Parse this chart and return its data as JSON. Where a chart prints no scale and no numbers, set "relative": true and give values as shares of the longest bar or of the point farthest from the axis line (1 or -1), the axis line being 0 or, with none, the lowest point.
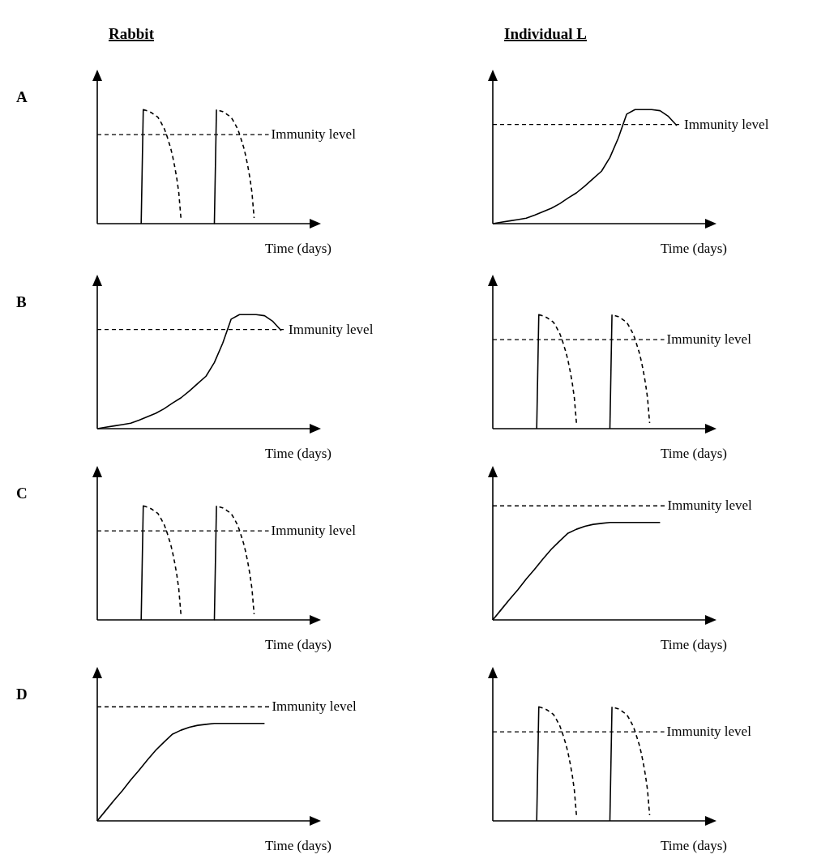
{
  "chart_data": [
    {
      "type": "line",
      "title": "Rabbit",
      "annotations": [
        "A"
      ],
      "xlabel": "Time (days)",
      "relative": true,
      "categories": [
        null,
        null,
        null,
        null,
        null,
        null,
        null,
        null,
        null,
        null,
        null,
        null,
        null,
        null,
        null,
        null,
        null,
        null,
        null,
        null,
        null,
        null,
        null,
        null,
        null,
        null,
        null,
        null,
        null,
        null,
        null,
        null,
        null,
        null,
        null,
        null,
        null,
        null,
        null,
        null,
        null,
        null,
        null,
        null,
        null,
        null,
        null,
        null,
        null,
        null,
        null,
        null,
        null,
        null,
        null,
        null,
        null,
        null,
        null,
        null,
        null,
        null,
        null,
        null,
        null,
        null,
        null,
        null,
        null,
        null,
        null,
        null,
        null,
        null,
        null,
        null,
        null,
        null,
        null,
        null,
        null,
        null,
        null,
        null,
        null,
        null,
        null,
        null,
        null,
        null,
        null,
        null,
        null,
        null,
        null,
        null,
        null,
        null,
        null,
        null,
        null
      ],
      "ref_lines": [
        {
          "axis": "y",
          "value": 0.78,
          "label": "Immunity level",
          "color": "#000000",
          "line_style": "dashed"
        }
      ],
      "series": [
        {
          "color": "#000000",
          "line_style": "dashed",
          "values": [
            0,
            0,
            0,
            0,
            0,
            0,
            0,
            0,
            0,
            0,
            0,
            0,
            0,
            0,
            0,
            0,
            0,
            0,
            0,
            0,
            0,
            0,
            1,
            0.994,
            0.988,
            0.982,
            0.972,
            0.959,
            0.946,
            0.933,
            0.903,
            0.869,
            0.835,
            0.787,
            0.728,
            0.67,
            0.594,
            0.504,
            0.4,
            0.27,
            0.05,
            0,
            0,
            0,
            0,
            0,
            0,
            0,
            0,
            0,
            0,
            0,
            0,
            0,
            0,
            0,
            0,
            1,
            0.994,
            0.988,
            0.982,
            0.972,
            0.959,
            0.946,
            0.933,
            0.903,
            0.869,
            0.835,
            0.787,
            0.728,
            0.67,
            0.594,
            0.504,
            0.4,
            0.27,
            0.05,
            null,
            null,
            null,
            null,
            null,
            null,
            null,
            null,
            null,
            null,
            null,
            null,
            null,
            null,
            null,
            null,
            null,
            null,
            null,
            null,
            null,
            null,
            null,
            null,
            null
          ]
        }
      ]
    },
    {
      "type": "line",
      "title": "Individual L",
      "xlabel": "Time (days)",
      "relative": true,
      "categories": [
        null,
        null,
        null,
        null,
        null,
        null,
        null,
        null,
        null,
        null,
        null,
        null,
        null,
        null,
        null,
        null,
        null,
        null,
        null,
        null,
        null,
        null,
        null,
        null,
        null,
        null
      ],
      "ref_lines": [
        {
          "axis": "y",
          "value": 0.87,
          "label": "Immunity level",
          "color": "#000000",
          "line_style": "dashed"
        }
      ],
      "series": [
        {
          "color": "#000000",
          "line_style": "solid",
          "values": [
            0,
            0.012,
            0.024,
            0.036,
            0.048,
            0.075,
            0.105,
            0.135,
            0.175,
            0.225,
            0.27,
            0.33,
            0.395,
            0.46,
            0.58,
            0.75,
            0.96,
            1,
            1,
            1,
            0.99,
            0.94,
            0.86,
            null,
            null,
            null
          ]
        }
      ]
    },
    {
      "type": "line",
      "annotations": [
        "B"
      ],
      "xlabel": "Time (days)",
      "relative": true,
      "categories": [
        null,
        null,
        null,
        null,
        null,
        null,
        null,
        null,
        null,
        null,
        null,
        null,
        null,
        null,
        null,
        null,
        null,
        null,
        null,
        null,
        null,
        null,
        null,
        null,
        null,
        null
      ],
      "ref_lines": [
        {
          "axis": "y",
          "value": 0.87,
          "label": "Immunity level",
          "color": "#000000",
          "line_style": "dashed"
        }
      ],
      "series": [
        {
          "color": "#000000",
          "line_style": "solid",
          "values": [
            0,
            0.012,
            0.024,
            0.036,
            0.048,
            0.075,
            0.105,
            0.135,
            0.175,
            0.225,
            0.27,
            0.33,
            0.395,
            0.46,
            0.58,
            0.75,
            0.96,
            1,
            1,
            1,
            0.99,
            0.94,
            0.86,
            null,
            null,
            null
          ]
        }
      ]
    },
    {
      "type": "line",
      "xlabel": "Time (days)",
      "relative": true,
      "categories": [
        null,
        null,
        null,
        null,
        null,
        null,
        null,
        null,
        null,
        null,
        null,
        null,
        null,
        null,
        null,
        null,
        null,
        null,
        null,
        null,
        null,
        null,
        null,
        null,
        null,
        null,
        null,
        null,
        null,
        null,
        null,
        null,
        null,
        null,
        null,
        null,
        null,
        null,
        null,
        null,
        null,
        null,
        null,
        null,
        null,
        null,
        null,
        null,
        null,
        null,
        null,
        null,
        null,
        null,
        null,
        null,
        null,
        null,
        null,
        null,
        null,
        null,
        null,
        null,
        null,
        null,
        null,
        null,
        null,
        null,
        null,
        null,
        null,
        null,
        null,
        null,
        null,
        null,
        null,
        null,
        null,
        null,
        null,
        null,
        null,
        null,
        null,
        null,
        null,
        null,
        null,
        null,
        null,
        null,
        null,
        null,
        null,
        null,
        null,
        null,
        null
      ],
      "ref_lines": [
        {
          "axis": "y",
          "value": 0.78,
          "label": "Immunity level",
          "color": "#000000",
          "line_style": "dashed"
        }
      ],
      "series": [
        {
          "color": "#000000",
          "line_style": "dashed",
          "values": [
            0,
            0,
            0,
            0,
            0,
            0,
            0,
            0,
            0,
            0,
            0,
            0,
            0,
            0,
            0,
            0,
            0,
            0,
            0,
            0,
            0,
            0,
            1,
            0.994,
            0.988,
            0.982,
            0.972,
            0.959,
            0.946,
            0.933,
            0.903,
            0.869,
            0.835,
            0.787,
            0.728,
            0.67,
            0.594,
            0.504,
            0.4,
            0.27,
            0.05,
            0,
            0,
            0,
            0,
            0,
            0,
            0,
            0,
            0,
            0,
            0,
            0,
            0,
            0,
            0,
            0,
            1,
            0.994,
            0.988,
            0.982,
            0.972,
            0.959,
            0.946,
            0.933,
            0.903,
            0.869,
            0.835,
            0.787,
            0.728,
            0.67,
            0.594,
            0.504,
            0.4,
            0.27,
            0.05,
            null,
            null,
            null,
            null,
            null,
            null,
            null,
            null,
            null,
            null,
            null,
            null,
            null,
            null,
            null,
            null,
            null,
            null,
            null,
            null,
            null,
            null,
            null,
            null,
            null
          ]
        }
      ]
    },
    {
      "type": "line",
      "annotations": [
        "C"
      ],
      "xlabel": "Time (days)",
      "relative": true,
      "categories": [
        null,
        null,
        null,
        null,
        null,
        null,
        null,
        null,
        null,
        null,
        null,
        null,
        null,
        null,
        null,
        null,
        null,
        null,
        null,
        null,
        null,
        null,
        null,
        null,
        null,
        null,
        null,
        null,
        null,
        null,
        null,
        null,
        null,
        null,
        null,
        null,
        null,
        null,
        null,
        null,
        null,
        null,
        null,
        null,
        null,
        null,
        null,
        null,
        null,
        null,
        null,
        null,
        null,
        null,
        null,
        null,
        null,
        null,
        null,
        null,
        null,
        null,
        null,
        null,
        null,
        null,
        null,
        null,
        null,
        null,
        null,
        null,
        null,
        null,
        null,
        null,
        null,
        null,
        null,
        null,
        null,
        null,
        null,
        null,
        null,
        null,
        null,
        null,
        null,
        null,
        null,
        null,
        null,
        null,
        null,
        null,
        null,
        null,
        null,
        null,
        null
      ],
      "ref_lines": [
        {
          "axis": "y",
          "value": 0.78,
          "label": "Immunity level",
          "color": "#000000",
          "line_style": "dashed"
        }
      ],
      "series": [
        {
          "color": "#000000",
          "line_style": "dashed",
          "values": [
            0,
            0,
            0,
            0,
            0,
            0,
            0,
            0,
            0,
            0,
            0,
            0,
            0,
            0,
            0,
            0,
            0,
            0,
            0,
            0,
            0,
            0,
            1,
            0.994,
            0.988,
            0.982,
            0.972,
            0.959,
            0.946,
            0.933,
            0.903,
            0.869,
            0.835,
            0.787,
            0.728,
            0.67,
            0.594,
            0.504,
            0.4,
            0.27,
            0.05,
            0,
            0,
            0,
            0,
            0,
            0,
            0,
            0,
            0,
            0,
            0,
            0,
            0,
            0,
            0,
            0,
            1,
            0.994,
            0.988,
            0.982,
            0.972,
            0.959,
            0.946,
            0.933,
            0.903,
            0.869,
            0.835,
            0.787,
            0.728,
            0.67,
            0.594,
            0.504,
            0.4,
            0.27,
            0.05,
            null,
            null,
            null,
            null,
            null,
            null,
            null,
            null,
            null,
            null,
            null,
            null,
            null,
            null,
            null,
            null,
            null,
            null,
            null,
            null,
            null,
            null,
            null,
            null,
            null
          ]
        }
      ]
    },
    {
      "type": "line",
      "xlabel": "Time (days)",
      "relative": true,
      "categories": [
        null,
        null,
        null,
        null,
        null,
        null,
        null,
        null,
        null,
        null,
        null,
        null,
        null,
        null,
        null,
        null,
        null,
        null,
        null,
        null,
        null,
        null,
        null,
        null,
        null,
        null
      ],
      "ref_lines": [
        {
          "axis": "y",
          "value": 1.17,
          "label": "Immunity level",
          "color": "#000000",
          "line_style": "dashed"
        }
      ],
      "series": [
        {
          "color": "#000000",
          "line_style": "solid",
          "values": [
            0,
            0.105,
            0.21,
            0.31,
            0.42,
            0.52,
            0.625,
            0.725,
            0.81,
            0.89,
            0.93,
            0.96,
            0.98,
            0.99,
            1,
            1,
            1,
            1,
            1,
            1,
            1,
            null,
            null,
            null,
            null,
            null
          ]
        }
      ]
    },
    {
      "type": "line",
      "annotations": [
        "D"
      ],
      "xlabel": "Time (days)",
      "relative": true,
      "categories": [
        null,
        null,
        null,
        null,
        null,
        null,
        null,
        null,
        null,
        null,
        null,
        null,
        null,
        null,
        null,
        null,
        null,
        null,
        null,
        null,
        null,
        null,
        null,
        null,
        null,
        null
      ],
      "ref_lines": [
        {
          "axis": "y",
          "value": 1.17,
          "label": "Immunity level",
          "color": "#000000",
          "line_style": "dashed"
        }
      ],
      "series": [
        {
          "color": "#000000",
          "line_style": "solid",
          "values": [
            0,
            0.105,
            0.21,
            0.31,
            0.42,
            0.52,
            0.625,
            0.725,
            0.81,
            0.89,
            0.93,
            0.96,
            0.98,
            0.99,
            1,
            1,
            1,
            1,
            1,
            1,
            1,
            null,
            null,
            null,
            null,
            null
          ]
        }
      ]
    },
    {
      "type": "line",
      "xlabel": "Time (days)",
      "relative": true,
      "categories": [
        null,
        null,
        null,
        null,
        null,
        null,
        null,
        null,
        null,
        null,
        null,
        null,
        null,
        null,
        null,
        null,
        null,
        null,
        null,
        null,
        null,
        null,
        null,
        null,
        null,
        null,
        null,
        null,
        null,
        null,
        null,
        null,
        null,
        null,
        null,
        null,
        null,
        null,
        null,
        null,
        null,
        null,
        null,
        null,
        null,
        null,
        null,
        null,
        null,
        null,
        null,
        null,
        null,
        null,
        null,
        null,
        null,
        null,
        null,
        null,
        null,
        null,
        null,
        null,
        null,
        null,
        null,
        null,
        null,
        null,
        null,
        null,
        null,
        null,
        null,
        null,
        null,
        null,
        null,
        null,
        null,
        null,
        null,
        null,
        null,
        null,
        null,
        null,
        null,
        null,
        null,
        null,
        null,
        null,
        null,
        null,
        null,
        null,
        null,
        null,
        null
      ],
      "ref_lines": [
        {
          "axis": "y",
          "value": 0.78,
          "label": "Immunity level",
          "color": "#000000",
          "line_style": "dashed"
        }
      ],
      "series": [
        {
          "color": "#000000",
          "line_style": "dashed",
          "values": [
            0,
            0,
            0,
            0,
            0,
            0,
            0,
            0,
            0,
            0,
            0,
            0,
            0,
            0,
            0,
            0,
            0,
            0,
            0,
            0,
            0,
            0,
            1,
            0.994,
            0.988,
            0.982,
            0.972,
            0.959,
            0.946,
            0.933,
            0.903,
            0.869,
            0.835,
            0.787,
            0.728,
            0.67,
            0.594,
            0.504,
            0.4,
            0.27,
            0.05,
            0,
            0,
            0,
            0,
            0,
            0,
            0,
            0,
            0,
            0,
            0,
            0,
            0,
            0,
            0,
            0,
            1,
            0.994,
            0.988,
            0.982,
            0.972,
            0.959,
            0.946,
            0.933,
            0.903,
            0.869,
            0.835,
            0.787,
            0.728,
            0.67,
            0.594,
            0.504,
            0.4,
            0.27,
            0.05,
            null,
            null,
            null,
            null,
            null,
            null,
            null,
            null,
            null,
            null,
            null,
            null,
            null,
            null,
            null,
            null,
            null,
            null,
            null,
            null,
            null,
            null,
            null,
            null,
            null
          ]
        }
      ]
    }
  ]
}
